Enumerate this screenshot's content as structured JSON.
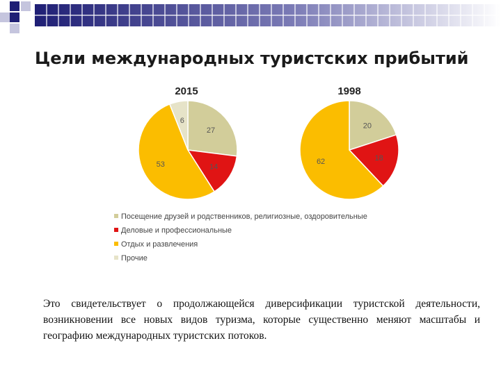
{
  "slide": {
    "title": "Цели международных туристских прибытий",
    "body": "Это свидетельствует о продолжающейся диверсификации туристской деятельности, возникновении все новых видов туризма, которые существенно меняют масштабы и географию международных туристских потоков."
  },
  "colors": {
    "deco_dark": "#1f1f75",
    "deco_light": "#c5c5de"
  },
  "chart_data": [
    {
      "type": "pie",
      "title": "2015",
      "categories": [
        "Посещение друзей и родственников, религиозные, оздоровительные",
        "Деловые и профессиональные",
        "Отдых и развлечения",
        "Прочие"
      ],
      "values": [
        27,
        14,
        53,
        6
      ],
      "colors": [
        "#d2cd9a",
        "#e01414",
        "#fbbd00",
        "#e6e3c8"
      ]
    },
    {
      "type": "pie",
      "title": "1998",
      "categories": [
        "Посещение друзей и родственников, религиозные, оздоровительные",
        "Деловые и профессиональные",
        "Отдых и развлечения"
      ],
      "values": [
        20,
        18,
        62
      ],
      "colors": [
        "#d2cd9a",
        "#e01414",
        "#fbbd00"
      ]
    }
  ],
  "legend": [
    {
      "label": "Посещение друзей и родственников, религиозные, оздоровительные",
      "color": "#d2cd9a"
    },
    {
      "label": "Деловые и профессиональные",
      "color": "#e01414"
    },
    {
      "label": "Отдых и развлечения",
      "color": "#fbbd00"
    },
    {
      "label": "Прочие",
      "color": "#e6e3c8"
    }
  ]
}
